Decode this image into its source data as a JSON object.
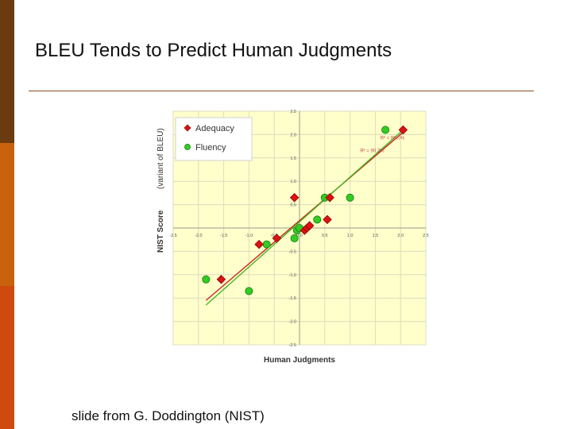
{
  "slide": {
    "title": "BLEU Tends to Predict Human Judgments",
    "footer": "slide from G. Doddington (NIST)",
    "accent_colors": [
      "#6b3a0e",
      "#c8620d",
      "#d04a10"
    ]
  },
  "chart_data": {
    "type": "scatter",
    "title": "",
    "xlabel": "Human Judgments",
    "ylabel": "NIST Score",
    "ylabel_note": "(variant of BLEU)",
    "xlim": [
      -2.5,
      2.5
    ],
    "ylim": [
      -2.5,
      2.5
    ],
    "x_ticks": [
      "-2.5",
      "-2.0",
      "-1.5",
      "-1.0",
      "-0.5",
      "0.0",
      "0.5",
      "1.0",
      "1.5",
      "2.0",
      "2.5"
    ],
    "y_ticks": [
      "2.5",
      "2.0",
      "1.5",
      "1.0",
      "0.5",
      "0.0",
      "-0.5",
      "-1.0",
      "-1.5",
      "-2.0",
      "-2.5"
    ],
    "grid": true,
    "legend_position": "top-left",
    "background_color": "#ffffcc",
    "series": [
      {
        "name": "Adequacy",
        "marker": "diamond",
        "color": "#dd1111",
        "r2_label": "R² = 88.0%",
        "x": [
          2.05,
          -1.55,
          -0.8,
          -0.45,
          -0.1,
          0.1,
          0.15,
          0.2,
          0.55,
          0.6
        ],
        "y": [
          2.1,
          -1.1,
          -0.35,
          -0.22,
          0.65,
          -0.05,
          0.0,
          0.05,
          0.18,
          0.65
        ]
      },
      {
        "name": "Fluency",
        "marker": "circle",
        "color": "#33cc22",
        "r2_label": "R² = 90.2%",
        "x": [
          1.7,
          -1.85,
          -1.0,
          -0.65,
          -0.1,
          -0.05,
          0.0,
          0.35,
          0.5,
          1.0
        ],
        "y": [
          2.1,
          -1.1,
          -1.35,
          -0.35,
          -0.22,
          -0.05,
          0.0,
          0.18,
          0.65,
          0.65
        ]
      }
    ],
    "fit_lines": [
      {
        "series": "Adequacy",
        "color": "#cc2222",
        "x": [
          -1.85,
          2.05
        ],
        "y": [
          -1.55,
          2.05
        ]
      },
      {
        "series": "Fluency",
        "color": "#44bb22",
        "x": [
          -1.85,
          2.05
        ],
        "y": [
          -1.65,
          2.1
        ]
      }
    ]
  }
}
